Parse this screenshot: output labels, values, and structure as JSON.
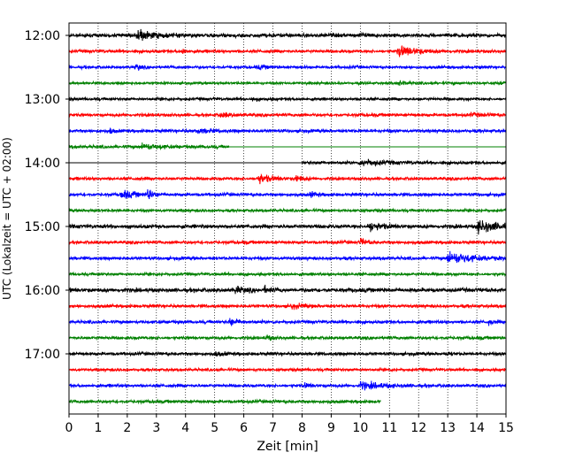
{
  "chart_data": {
    "type": "line",
    "title": "",
    "xlabel": "Zeit  [min]",
    "ylabel": "UTC (Lokalzeit = UTC + 02:00)",
    "xlim": [
      0,
      15
    ],
    "x_ticks": [
      "0",
      "1",
      "2",
      "3",
      "4",
      "5",
      "6",
      "7",
      "8",
      "9",
      "10",
      "11",
      "12",
      "13",
      "14",
      "15"
    ],
    "y_ticks": [
      "12:00",
      "13:00",
      "14:00",
      "15:00",
      "16:00",
      "17:00"
    ],
    "grid": "vertical dotted lines at each minute",
    "minutes_per_trace": 15,
    "colors": [
      "#000000",
      "#ff0000",
      "#0000ff",
      "#008000"
    ],
    "traces": [
      {
        "start": "12:00",
        "color": "#000000",
        "amplitude": 0.55,
        "events": [
          {
            "t": 2.3,
            "amp": 1.6,
            "dur": 0.5
          },
          {
            "t": 10.0,
            "amp": 0.6,
            "dur": 0.2
          }
        ]
      },
      {
        "start": "12:15",
        "color": "#ff0000",
        "amplitude": 0.45,
        "events": [
          {
            "t": 3.9,
            "amp": 0.9,
            "dur": 0.1
          },
          {
            "t": 11.3,
            "amp": 1.6,
            "dur": 0.6
          }
        ]
      },
      {
        "start": "12:30",
        "color": "#0000ff",
        "amplitude": 0.4,
        "events": [
          {
            "t": 2.3,
            "amp": 1.0,
            "dur": 0.15
          },
          {
            "t": 6.5,
            "amp": 0.5,
            "dur": 0.3
          }
        ]
      },
      {
        "start": "12:45",
        "color": "#008000",
        "amplitude": 0.35,
        "events": [
          {
            "t": 11.3,
            "amp": 0.7,
            "dur": 0.3
          },
          {
            "t": 14.8,
            "amp": 0.9,
            "dur": 0.1
          }
        ]
      },
      {
        "start": "13:00",
        "color": "#000000",
        "amplitude": 0.4,
        "events": [
          {
            "t": 6.3,
            "amp": 0.7,
            "dur": 0.15
          }
        ]
      },
      {
        "start": "13:15",
        "color": "#ff0000",
        "amplitude": 0.45,
        "events": [
          {
            "t": 5.2,
            "amp": 0.6,
            "dur": 0.4
          },
          {
            "t": 13.8,
            "amp": 0.4,
            "dur": 0.4
          }
        ]
      },
      {
        "start": "13:30",
        "color": "#0000ff",
        "amplitude": 0.45,
        "events": [
          {
            "t": 1.4,
            "amp": 0.8,
            "dur": 0.1
          },
          {
            "t": 4.4,
            "amp": 0.6,
            "dur": 0.4
          }
        ]
      },
      {
        "start": "13:45",
        "color": "#008000",
        "amplitude": 0.45,
        "flat_from": 5.5,
        "events": [
          {
            "t": 2.5,
            "amp": 0.8,
            "dur": 0.6
          }
        ]
      },
      {
        "start": "14:00",
        "color": "#000000",
        "amplitude": 0.45,
        "flat_until": 8.0,
        "events": [
          {
            "t": 10.0,
            "amp": 1.0,
            "dur": 0.6
          }
        ]
      },
      {
        "start": "14:15",
        "color": "#ff0000",
        "amplitude": 0.45,
        "events": [
          {
            "t": 6.5,
            "amp": 1.4,
            "dur": 0.4
          },
          {
            "t": 7.8,
            "amp": 0.9,
            "dur": 0.2
          }
        ]
      },
      {
        "start": "14:30",
        "color": "#0000ff",
        "amplitude": 0.45,
        "events": [
          {
            "t": 1.8,
            "amp": 1.3,
            "dur": 0.4
          },
          {
            "t": 2.7,
            "amp": 1.6,
            "dur": 0.2
          },
          {
            "t": 8.3,
            "amp": 0.7,
            "dur": 0.2
          }
        ]
      },
      {
        "start": "14:45",
        "color": "#008000",
        "amplitude": 0.4,
        "events": []
      },
      {
        "start": "15:00",
        "color": "#000000",
        "amplitude": 0.55,
        "events": [
          {
            "t": 10.3,
            "amp": 1.3,
            "dur": 0.4
          },
          {
            "t": 14.0,
            "amp": 1.6,
            "dur": 0.8
          }
        ]
      },
      {
        "start": "15:15",
        "color": "#ff0000",
        "amplitude": 0.45,
        "events": [
          {
            "t": 10.0,
            "amp": 1.0,
            "dur": 0.2
          }
        ]
      },
      {
        "start": "15:30",
        "color": "#0000ff",
        "amplitude": 0.45,
        "events": [
          {
            "t": 13.0,
            "amp": 1.8,
            "dur": 0.8
          }
        ]
      },
      {
        "start": "15:45",
        "color": "#008000",
        "amplitude": 0.4,
        "events": []
      },
      {
        "start": "16:00",
        "color": "#000000",
        "amplitude": 0.6,
        "events": [
          {
            "t": 5.7,
            "amp": 0.8,
            "dur": 0.3
          },
          {
            "t": 6.7,
            "amp": 0.8,
            "dur": 0.15
          }
        ]
      },
      {
        "start": "16:15",
        "color": "#ff0000",
        "amplitude": 0.45,
        "events": [
          {
            "t": 7.6,
            "amp": 0.7,
            "dur": 0.4
          }
        ]
      },
      {
        "start": "16:30",
        "color": "#0000ff",
        "amplitude": 0.45,
        "events": [
          {
            "t": 5.5,
            "amp": 1.0,
            "dur": 0.3
          },
          {
            "t": 14.4,
            "amp": 0.9,
            "dur": 0.15
          }
        ]
      },
      {
        "start": "16:45",
        "color": "#008000",
        "amplitude": 0.45,
        "events": [
          {
            "t": 6.8,
            "amp": 1.0,
            "dur": 0.1
          }
        ]
      },
      {
        "start": "17:00",
        "color": "#000000",
        "amplitude": 0.45,
        "events": [
          {
            "t": 5.0,
            "amp": 0.5,
            "dur": 0.3
          },
          {
            "t": 13.0,
            "amp": 0.6,
            "dur": 0.1
          }
        ]
      },
      {
        "start": "17:15",
        "color": "#ff0000",
        "amplitude": 0.4,
        "events": []
      },
      {
        "start": "17:30",
        "color": "#0000ff",
        "amplitude": 0.45,
        "events": [
          {
            "t": 8.1,
            "amp": 0.6,
            "dur": 0.2
          },
          {
            "t": 10.0,
            "amp": 0.9,
            "dur": 0.8
          }
        ]
      },
      {
        "start": "17:45",
        "color": "#008000",
        "amplitude": 0.45,
        "end": 10.7,
        "events": []
      }
    ]
  }
}
